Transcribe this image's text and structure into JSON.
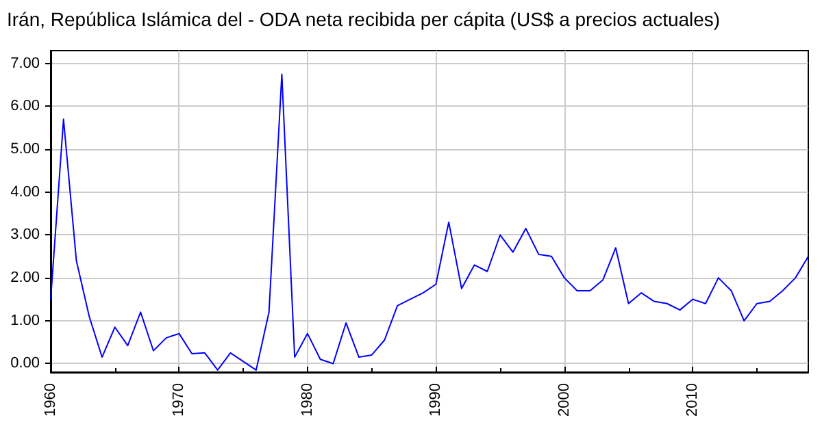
{
  "chart_data": {
    "type": "line",
    "title": "Irán, República Islámica del - ODA neta recibida per cápita (US$ a precios actuales)",
    "x": [
      1960,
      1961,
      1962,
      1963,
      1964,
      1965,
      1966,
      1967,
      1968,
      1969,
      1970,
      1971,
      1972,
      1973,
      1974,
      1975,
      1976,
      1977,
      1978,
      1979,
      1980,
      1981,
      1982,
      1983,
      1984,
      1985,
      1986,
      1987,
      1988,
      1989,
      1990,
      1991,
      1992,
      1993,
      1994,
      1995,
      1996,
      1997,
      1998,
      1999,
      2000,
      2001,
      2002,
      2003,
      2004,
      2005,
      2006,
      2007,
      2008,
      2009,
      2010,
      2011,
      2012,
      2013,
      2014,
      2015,
      2016,
      2017,
      2018,
      2019
    ],
    "series": [
      {
        "color": "#0000ff",
        "values": [
          1.5,
          5.7,
          2.4,
          1.1,
          0.15,
          0.85,
          0.42,
          1.2,
          0.3,
          0.6,
          0.7,
          0.23,
          0.25,
          -0.15,
          0.25,
          0.05,
          -0.15,
          1.2,
          6.75,
          0.15,
          0.7,
          0.1,
          0.0,
          0.95,
          0.15,
          0.2,
          0.55,
          1.35,
          1.5,
          1.65,
          1.85,
          3.3,
          1.75,
          2.3,
          2.15,
          3.0,
          2.6,
          3.15,
          2.55,
          2.5,
          2.0,
          1.7,
          1.7,
          1.95,
          2.7,
          1.4,
          1.65,
          1.45,
          1.4,
          1.25,
          1.5,
          1.4,
          2.0,
          1.7,
          1.0,
          1.4,
          1.45,
          1.7,
          2.0,
          2.5
        ]
      }
    ],
    "xlim": [
      1960,
      2019
    ],
    "xticks": [
      1960,
      1970,
      1980,
      1990,
      2000,
      2010
    ],
    "ylim": [
      -0.2,
      7.3
    ],
    "yticks": [
      {
        "value": 0,
        "label": "0.00"
      },
      {
        "value": 1,
        "label": "1.00"
      },
      {
        "value": 2,
        "label": "2.00"
      },
      {
        "value": 3,
        "label": "3.00"
      },
      {
        "value": 4,
        "label": "4.00"
      },
      {
        "value": 5,
        "label": "5.00"
      },
      {
        "value": 6,
        "label": "6.00"
      },
      {
        "value": 7,
        "label": "7.00"
      }
    ],
    "grid": true,
    "marker": "none",
    "line_style": "solid"
  }
}
